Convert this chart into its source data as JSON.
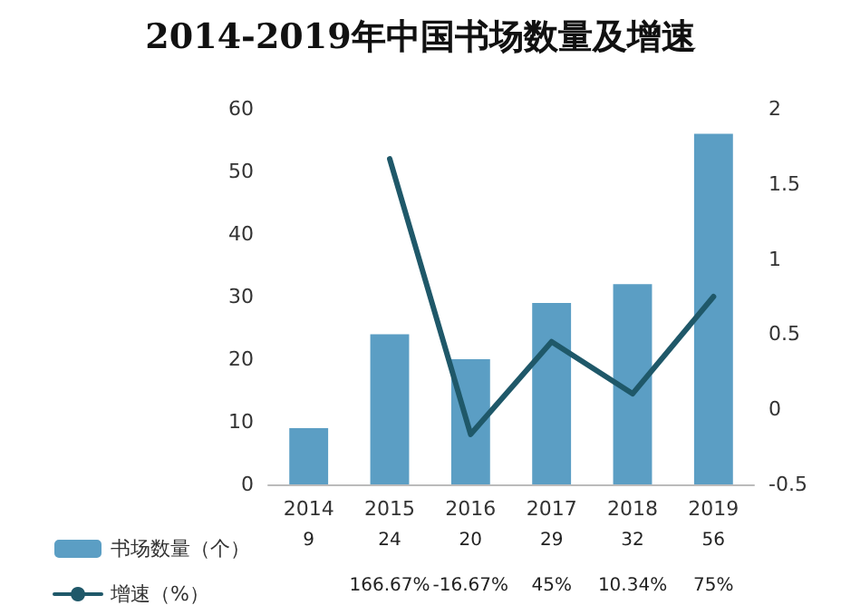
{
  "chart_data": {
    "type": "bar",
    "title": "2014-2019年中国书场数量及增速",
    "categories": [
      "2014",
      "2015",
      "2016",
      "2017",
      "2018",
      "2019"
    ],
    "series": [
      {
        "name": "书场数量（个）",
        "color": "#5b9ec4",
        "values": [
          9,
          24,
          20,
          29,
          32,
          56
        ]
      },
      {
        "name": "增速（%）",
        "type": "line",
        "axis": "y2",
        "color": "#1f5869",
        "values": [
          null,
          1.6667,
          -0.1667,
          0.45,
          0.1034,
          0.75
        ],
        "value_labels": [
          null,
          "166.67%",
          "-16.67%",
          "45%",
          "10.34%",
          "75%"
        ]
      }
    ],
    "ylim": [
      0,
      60
    ],
    "yticks": [
      0,
      10,
      20,
      30,
      40,
      50,
      60
    ],
    "y2lim": [
      -0.5,
      2
    ],
    "y2ticks": [
      -0.5,
      0,
      0.5,
      1,
      1.5,
      2
    ],
    "data_labels": true,
    "grid": false,
    "legend": "bottom left",
    "marker": "none",
    "line_style": "solid"
  }
}
